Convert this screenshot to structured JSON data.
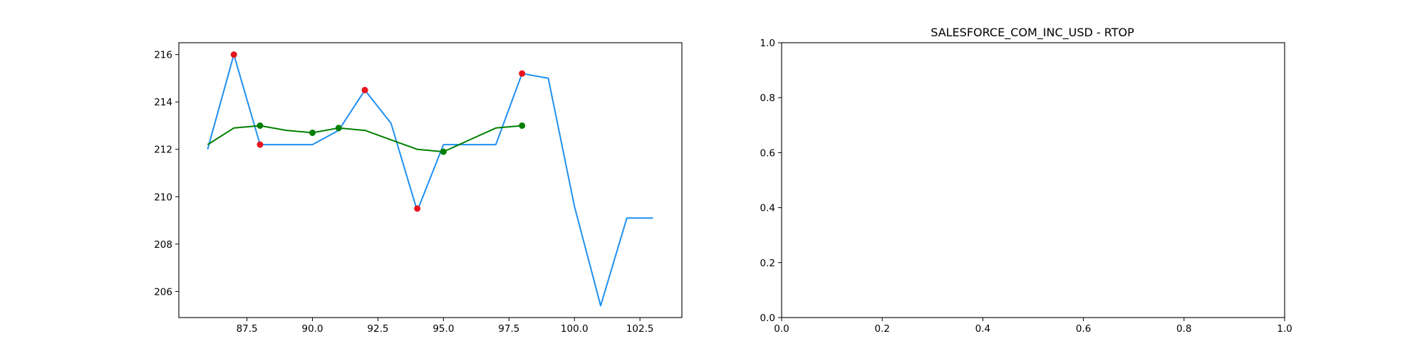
{
  "chart_data": [
    {
      "type": "line",
      "title": "",
      "xlabel": "",
      "ylabel": "",
      "xlim": [
        84.9,
        104.1
      ],
      "ylim": [
        204.9,
        216.5
      ],
      "xticks": [
        87.5,
        90.0,
        92.5,
        95.0,
        97.5,
        100.0,
        102.5
      ],
      "xtick_labels": [
        "87.5",
        "90.0",
        "92.5",
        "95.0",
        "97.5",
        "100.0",
        "102.5"
      ],
      "yticks": [
        206,
        208,
        210,
        212,
        214,
        216
      ],
      "ytick_labels": [
        "206",
        "208",
        "210",
        "212",
        "214",
        "216"
      ],
      "grid": false,
      "series": [
        {
          "kind": "line",
          "color": "#1f8ff0",
          "x": [
            86,
            87,
            88,
            89,
            90,
            91,
            92,
            93,
            94,
            95,
            96,
            97,
            98,
            99,
            100,
            101,
            102,
            103
          ],
          "y": [
            212.0,
            216.0,
            212.2,
            212.2,
            212.2,
            212.8,
            214.5,
            213.1,
            209.4,
            212.2,
            212.2,
            212.2,
            215.2,
            215.0,
            209.6,
            205.4,
            209.1,
            209.1
          ]
        },
        {
          "kind": "line",
          "color": "#008000",
          "x": [
            86,
            87,
            88,
            89,
            90,
            91,
            92,
            93,
            94,
            95,
            96,
            97,
            98
          ],
          "y": [
            212.2,
            212.9,
            213.0,
            212.8,
            212.7,
            212.9,
            212.8,
            212.4,
            212.0,
            211.9,
            212.4,
            212.9,
            213.0
          ]
        },
        {
          "kind": "scatter",
          "color": "#e8141e",
          "x": [
            87,
            88,
            92,
            94,
            98
          ],
          "y": [
            216.0,
            212.2,
            214.5,
            209.5,
            215.2
          ]
        },
        {
          "kind": "scatter",
          "color": "#008000",
          "x": [
            88,
            90,
            91,
            95,
            98
          ],
          "y": [
            213.0,
            212.7,
            212.9,
            211.9,
            213.0
          ]
        }
      ]
    },
    {
      "type": "line",
      "title": "SALESFORCE_COM_INC_USD - RTOP",
      "xlabel": "",
      "ylabel": "",
      "xlim": [
        0,
        1
      ],
      "ylim": [
        0,
        1
      ],
      "xticks": [
        0.0,
        0.2,
        0.4,
        0.6,
        0.8,
        1.0
      ],
      "xtick_labels": [
        "0.0",
        "0.2",
        "0.4",
        "0.6",
        "0.8",
        "1.0"
      ],
      "yticks": [
        0.0,
        0.2,
        0.4,
        0.6,
        0.8,
        1.0
      ],
      "ytick_labels": [
        "0.0",
        "0.2",
        "0.4",
        "0.6",
        "0.8",
        "1.0"
      ],
      "grid": false,
      "series": []
    }
  ]
}
